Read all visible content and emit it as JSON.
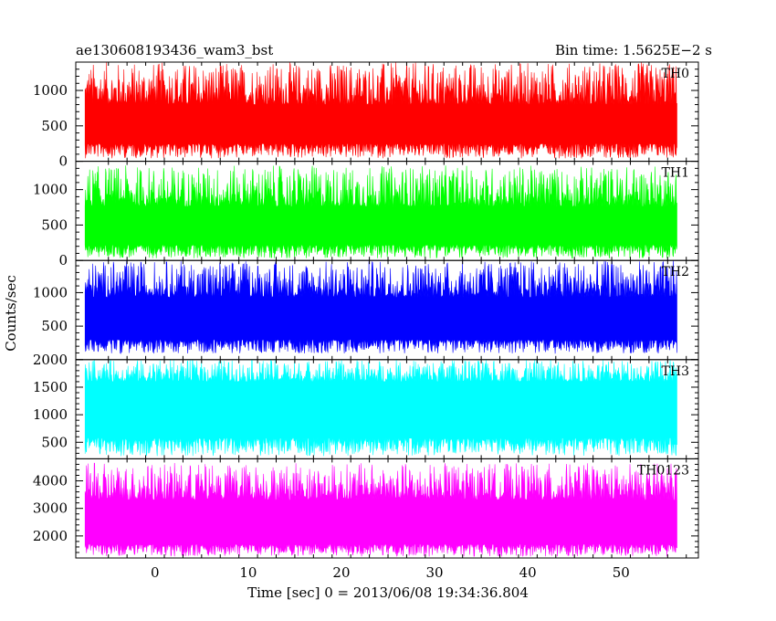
{
  "chart_data": {
    "type": "line",
    "title_left": "ae130608193436_wam3_bst",
    "title_right": "Bin time: 1.5625E−2 s",
    "xlabel": "Time [sec] 0 = 2013/06/08 19:34:36.804",
    "ylabel": "Counts/sec",
    "xlim": [
      -8.5,
      58.3
    ],
    "x_ticks": [
      0,
      10,
      20,
      30,
      40,
      50
    ],
    "x_data_range": [
      -7.5,
      56.0
    ],
    "bin_time_s": 0.015625,
    "panels": [
      {
        "name": "TH0",
        "color": "#ff0000",
        "ylim": [
          0,
          1400
        ],
        "y_ticks": [
          0,
          500,
          1000
        ],
        "y_tick_labels": [
          "0",
          "500",
          "1000"
        ],
        "low": 40,
        "high": 1400,
        "core_low": 250,
        "core_high": 800
      },
      {
        "name": "TH1",
        "color": "#00ff00",
        "ylim": [
          0,
          1400
        ],
        "y_ticks": [
          0,
          500,
          1000
        ],
        "y_tick_labels": [
          "0",
          "500",
          "1000"
        ],
        "low": 30,
        "high": 1340,
        "core_low": 220,
        "core_high": 760
      },
      {
        "name": "TH2",
        "color": "#0000ff",
        "ylim": [
          0,
          1480
        ],
        "y_ticks": [
          500,
          1000
        ],
        "y_tick_labels": [
          "500",
          "1000"
        ],
        "low": 90,
        "high": 1480,
        "core_low": 300,
        "core_high": 930
      },
      {
        "name": "TH3",
        "color": "#00ffff",
        "ylim": [
          200,
          2000
        ],
        "y_ticks": [
          500,
          1000,
          1500,
          2000
        ],
        "y_tick_labels": [
          "500",
          "1000",
          "1500",
          "2000"
        ],
        "low": 250,
        "high": 2000,
        "core_low": 580,
        "core_high": 1600
      },
      {
        "name": "TH0123",
        "color": "#ff00ff",
        "ylim": [
          1200,
          4800
        ],
        "y_ticks": [
          2000,
          3000,
          4000
        ],
        "y_tick_labels": [
          "2000",
          "3000",
          "4000"
        ],
        "low": 1250,
        "high": 4650,
        "core_low": 1700,
        "core_high": 3300
      }
    ]
  }
}
